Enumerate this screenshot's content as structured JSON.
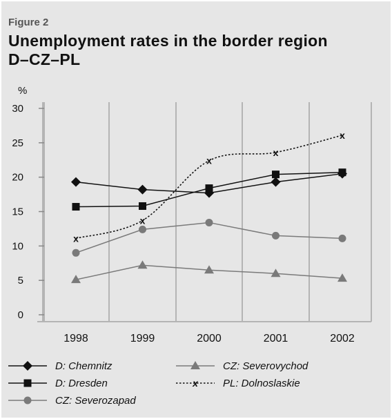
{
  "figure_label": "Figure 2",
  "title_line1": "Unemployment rates in the border region",
  "title_line2": "D–CZ–PL",
  "chart_data": {
    "type": "line",
    "x": [
      "1998",
      "1999",
      "2000",
      "2001",
      "2002"
    ],
    "y_unit_label": "%",
    "ylim": [
      0,
      30
    ],
    "yticks": [
      0,
      5,
      10,
      15,
      20,
      25,
      30
    ],
    "grid": "vertical",
    "legend_position": "bottom",
    "series": [
      {
        "name": "D: Chemnitz",
        "values": [
          19.3,
          18.2,
          17.7,
          19.3,
          20.5
        ],
        "color": "#111111",
        "marker": "diamond",
        "dash": "solid"
      },
      {
        "name": "D: Dresden",
        "values": [
          15.7,
          15.8,
          18.4,
          20.4,
          20.7
        ],
        "color": "#111111",
        "marker": "square",
        "dash": "solid"
      },
      {
        "name": "CZ: Severozapad",
        "values": [
          9.0,
          12.4,
          13.4,
          11.5,
          11.1
        ],
        "color": "#7a7a7a",
        "marker": "circle",
        "dash": "solid"
      },
      {
        "name": "CZ: Severovychod",
        "values": [
          5.1,
          7.2,
          6.5,
          6.0,
          5.3
        ],
        "color": "#7a7a7a",
        "marker": "triangle",
        "dash": "solid"
      },
      {
        "name": "PL: Dolnoslaskie",
        "values": [
          11.1,
          13.7,
          22.4,
          23.6,
          26.1
        ],
        "color": "#111111",
        "marker": "x",
        "dash": "dotted"
      }
    ]
  }
}
